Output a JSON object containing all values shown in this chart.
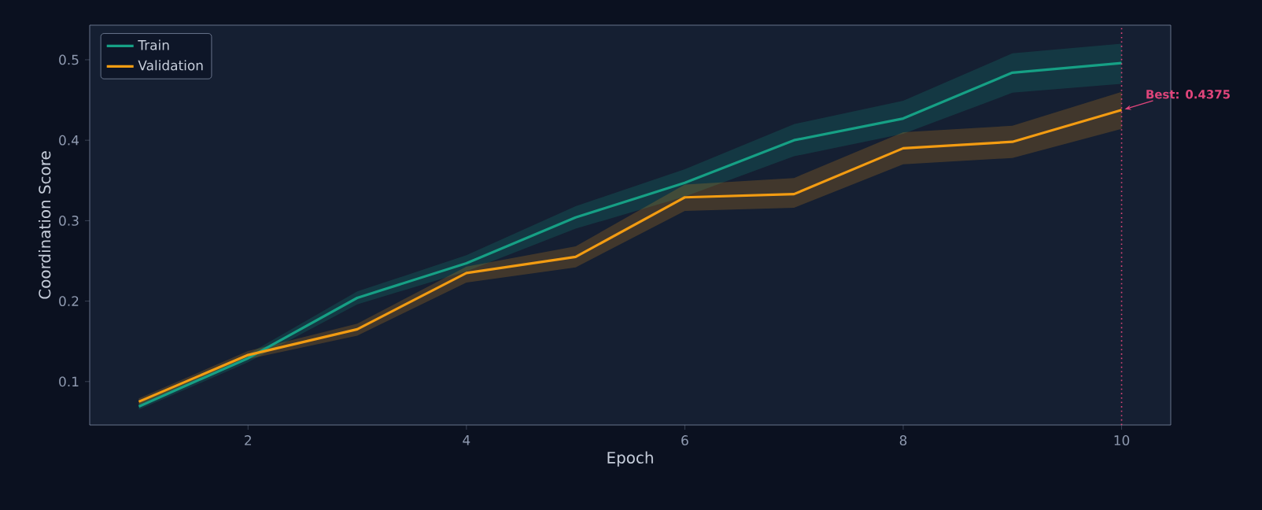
{
  "chart_data": {
    "type": "line",
    "xlabel": "Epoch",
    "ylabel": "Coordination Score",
    "x": [
      1,
      2,
      3,
      4,
      5,
      6,
      7,
      8,
      9,
      10
    ],
    "series": [
      {
        "name": "Train",
        "color": "#16a085",
        "values": [
          0.069,
          0.129,
          0.204,
          0.247,
          0.304,
          0.347,
          0.4,
          0.427,
          0.484,
          0.496
        ],
        "lower": [
          0.065,
          0.124,
          0.196,
          0.237,
          0.29,
          0.33,
          0.38,
          0.408,
          0.459,
          0.47
        ],
        "upper": [
          0.073,
          0.134,
          0.212,
          0.257,
          0.318,
          0.364,
          0.42,
          0.449,
          0.508,
          0.52
        ]
      },
      {
        "name": "Validation",
        "color": "#f39c12",
        "values": [
          0.075,
          0.133,
          0.165,
          0.235,
          0.255,
          0.329,
          0.333,
          0.39,
          0.398,
          0.4375
        ],
        "lower": [
          0.071,
          0.128,
          0.157,
          0.223,
          0.242,
          0.312,
          0.316,
          0.37,
          0.378,
          0.414
        ],
        "upper": [
          0.079,
          0.138,
          0.172,
          0.243,
          0.268,
          0.345,
          0.353,
          0.41,
          0.418,
          0.46
        ]
      }
    ],
    "xlim": [
      0.55,
      10.45
    ],
    "ylim": [
      0.046,
      0.543
    ],
    "xticks": [
      2,
      4,
      6,
      8,
      10
    ],
    "yticks": [
      0.1,
      0.2,
      0.3,
      0.4,
      0.5
    ],
    "ref_lines": [
      {
        "axis": "x",
        "value": 10,
        "color": "#e0457b",
        "line_style": "dotted"
      }
    ],
    "annotations": [
      {
        "text": "Best: 0.4375",
        "x": 10,
        "y": 0.4375
      }
    ],
    "legend": "top left",
    "grid": false,
    "marker": "none",
    "line_style": "solid"
  }
}
